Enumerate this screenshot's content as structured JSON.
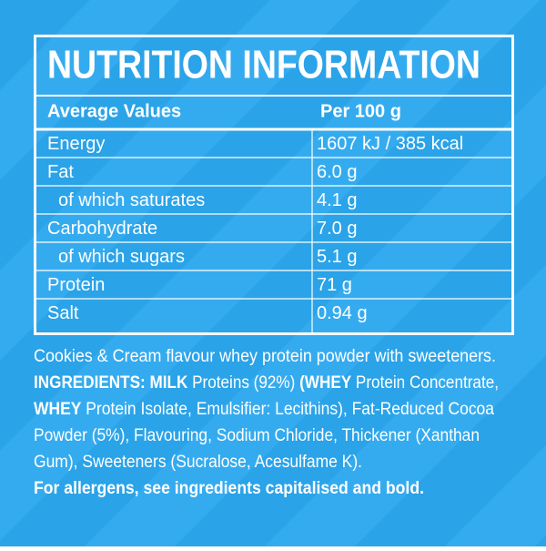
{
  "panel": {
    "title": "NUTRITION INFORMATION",
    "table": {
      "header": [
        "Average Values",
        "Per 100 g"
      ],
      "rows": [
        {
          "name": "Energy",
          "value": "1607 kJ / 385 kcal",
          "indent": false
        },
        {
          "name": "Fat",
          "value": "6.0 g",
          "indent": false
        },
        {
          "name": "of which saturates",
          "value": "4.1 g",
          "indent": true
        },
        {
          "name": "Carbohydrate",
          "value": "7.0 g",
          "indent": false
        },
        {
          "name": "of which sugars",
          "value": "5.1 g",
          "indent": true
        },
        {
          "name": "Protein",
          "value": "71 g",
          "indent": false
        },
        {
          "name": "Salt",
          "value": "0.94 g",
          "indent": false
        }
      ]
    },
    "ingredients": [
      [
        {
          "text": "Cookies & Cream flavour whey protein powder with sweeteners.",
          "bold": false
        }
      ],
      [
        {
          "text": "INGREDIENTS: MILK",
          "bold": true
        },
        {
          "text": " Proteins (92%) ",
          "bold": false
        },
        {
          "text": "(WHEY",
          "bold": true
        },
        {
          "text": " Protein Concentrate,",
          "bold": false
        }
      ],
      [
        {
          "text": "WHEY",
          "bold": true
        },
        {
          "text": " Protein Isolate, Emulsifier: Lecithins), Fat-Reduced Cocoa",
          "bold": false
        }
      ],
      [
        {
          "text": "Powder (5%), Flavouring, Sodium Chloride, Thickener (Xanthan",
          "bold": false
        }
      ],
      [
        {
          "text": "Gum), Sweeteners (Sucralose, Acesulfame K).",
          "bold": false
        }
      ],
      [
        {
          "text": "For allergens, see ingredients capitalised and bold.",
          "bold": true
        }
      ]
    ]
  }
}
